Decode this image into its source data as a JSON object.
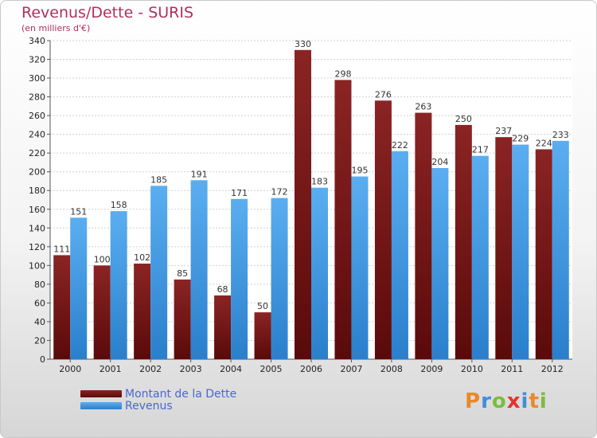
{
  "title": "Revenus/Dette - SURIS",
  "subtitle": "(en milliers d'€)",
  "logo": "Proxiti",
  "colors": {
    "dette_top": "#8b2424",
    "dette_bottom": "#5a0a0a",
    "revenus_top": "#5aaef0",
    "revenus_bottom": "#2a7fcc",
    "title": "#b0305b",
    "legend_text": "#4a66d8"
  },
  "chart_data": {
    "type": "bar",
    "title": "Revenus/Dette - SURIS",
    "subtitle": "(en milliers d'€)",
    "xlabel": "",
    "ylabel": "",
    "ylim": [
      0,
      340
    ],
    "ytick_step": 20,
    "grid": true,
    "legend_position": "bottom-left",
    "categories": [
      "2000",
      "2001",
      "2002",
      "2003",
      "2004",
      "2005",
      "2006",
      "2007",
      "2008",
      "2009",
      "2010",
      "2011",
      "2012"
    ],
    "series": [
      {
        "name": "Montant de la Dette",
        "values": [
          111,
          100,
          102,
          85,
          68,
          50,
          330,
          298,
          276,
          263,
          250,
          237,
          224
        ]
      },
      {
        "name": "Revenus",
        "values": [
          151,
          158,
          185,
          191,
          171,
          172,
          183,
          195,
          222,
          204,
          217,
          229,
          233
        ]
      }
    ]
  }
}
